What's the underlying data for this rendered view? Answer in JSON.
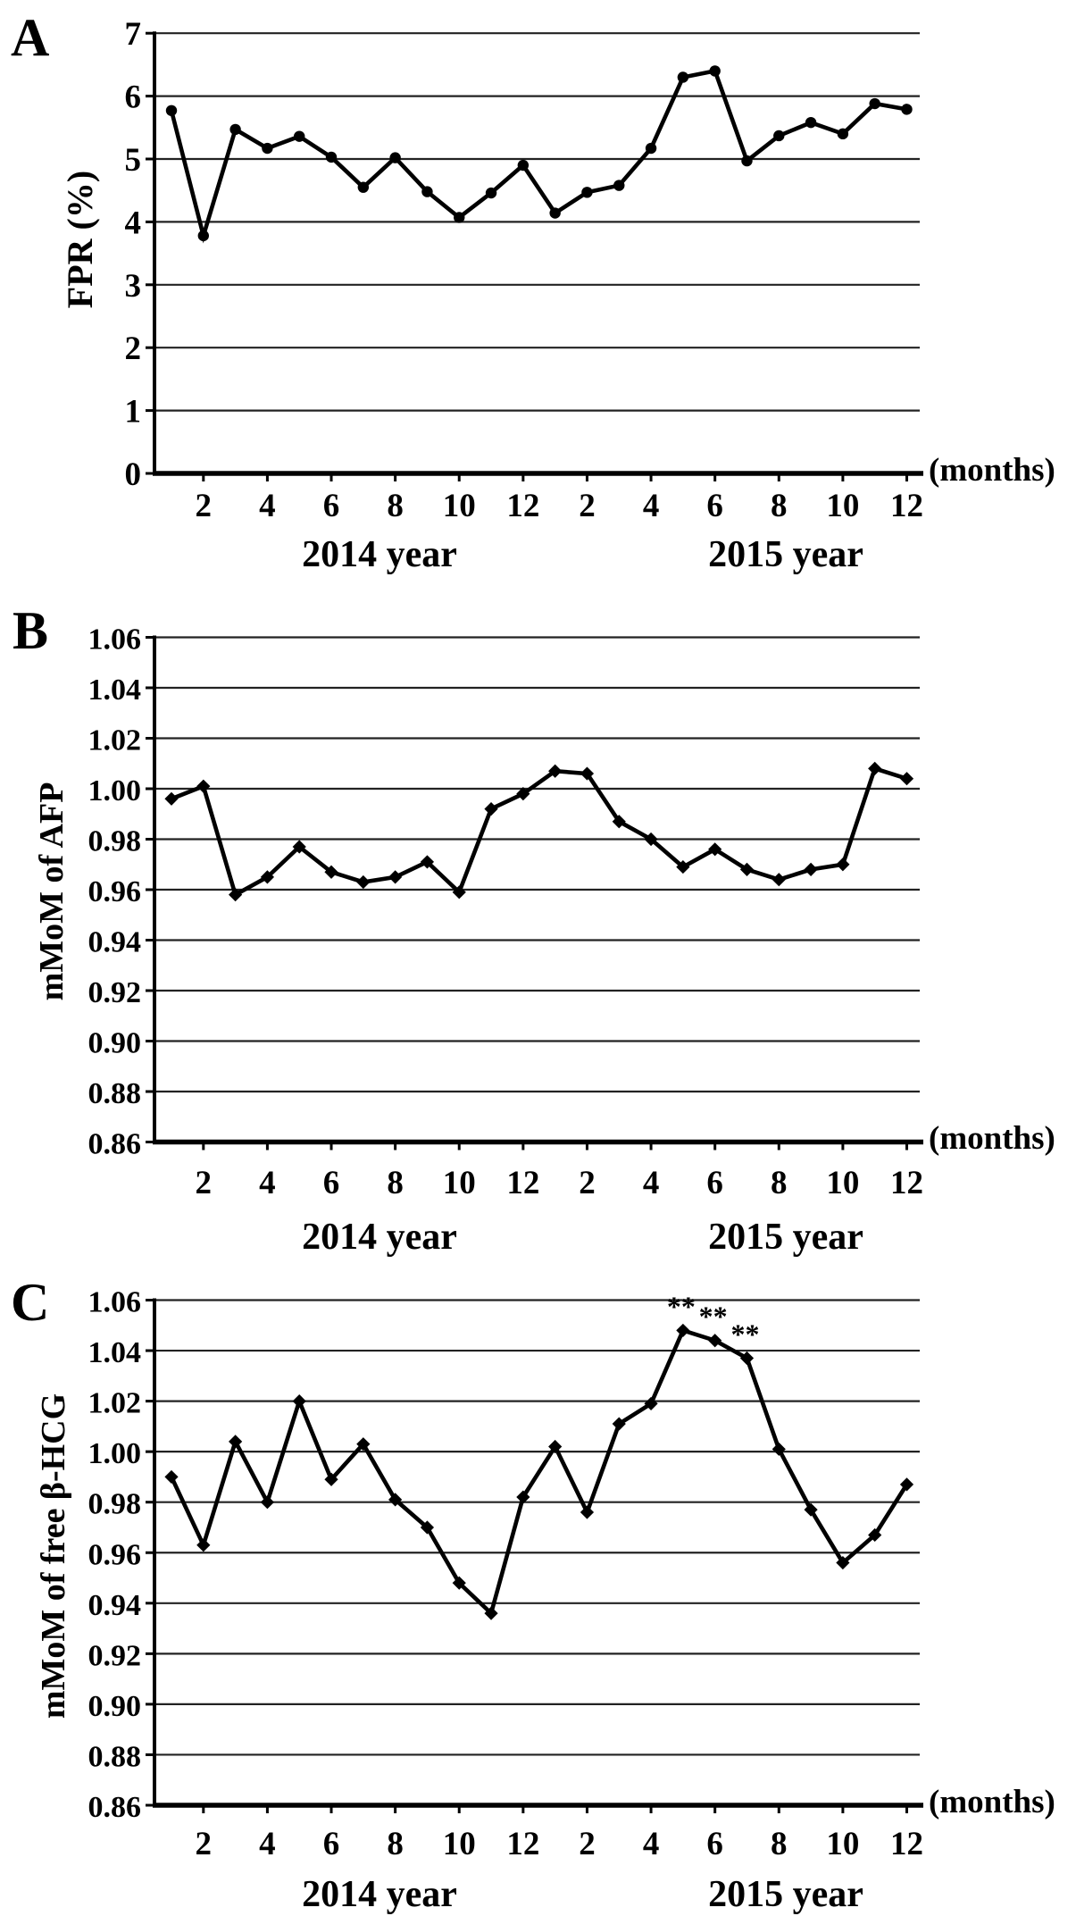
{
  "figure": {
    "background": "#ffffff",
    "ink_color": "#000000",
    "grid_color": "#222222",
    "x_unit_label": "(months)",
    "year_labels": [
      "2014 year",
      "2015 year"
    ],
    "x_tick_labels": [
      "2",
      "4",
      "6",
      "8",
      "10",
      "12",
      "2",
      "4",
      "6",
      "8",
      "10",
      "12"
    ]
  },
  "chart_data": [
    {
      "panel": "A",
      "type": "line",
      "marker": "circle",
      "title": "",
      "xlabel": "(months)",
      "ylabel": "FPR (%)",
      "ylim": [
        0,
        7
      ],
      "ytick_step": 1,
      "grid": true,
      "legend": "none",
      "x": [
        1,
        2,
        3,
        4,
        5,
        6,
        7,
        8,
        9,
        10,
        11,
        12,
        13,
        14,
        15,
        16,
        17,
        18,
        19,
        20,
        21,
        22,
        23,
        24
      ],
      "values": [
        5.77,
        3.78,
        5.47,
        5.17,
        5.36,
        5.03,
        4.55,
        5.02,
        4.48,
        4.07,
        4.46,
        4.9,
        4.14,
        4.47,
        4.58,
        5.17,
        6.3,
        6.4,
        4.97,
        5.37,
        5.58,
        5.4,
        5.88,
        5.79
      ],
      "annotations": []
    },
    {
      "panel": "B",
      "type": "line",
      "marker": "diamond",
      "title": "",
      "xlabel": "(months)",
      "ylabel": "mMoM of AFP",
      "ylim": [
        0.86,
        1.06
      ],
      "ytick_step": 0.02,
      "grid": true,
      "legend": "none",
      "x": [
        1,
        2,
        3,
        4,
        5,
        6,
        7,
        8,
        9,
        10,
        11,
        12,
        13,
        14,
        15,
        16,
        17,
        18,
        19,
        20,
        21,
        22,
        23,
        24
      ],
      "values": [
        0.996,
        1.001,
        0.958,
        0.965,
        0.977,
        0.967,
        0.963,
        0.965,
        0.971,
        0.959,
        0.992,
        0.998,
        1.007,
        1.006,
        0.987,
        0.98,
        0.969,
        0.976,
        0.968,
        0.964,
        0.968,
        0.97,
        1.008,
        1.004
      ],
      "annotations": []
    },
    {
      "panel": "C",
      "type": "line",
      "marker": "diamond",
      "title": "",
      "xlabel": "(months)",
      "ylabel": "mMoM of free β-HCG",
      "ylim": [
        0.86,
        1.06
      ],
      "ytick_step": 0.02,
      "grid": true,
      "legend": "none",
      "x": [
        1,
        2,
        3,
        4,
        5,
        6,
        7,
        8,
        9,
        10,
        11,
        12,
        13,
        14,
        15,
        16,
        17,
        18,
        19,
        20,
        21,
        22,
        23,
        24
      ],
      "values": [
        0.99,
        0.963,
        1.004,
        0.98,
        1.02,
        0.989,
        1.003,
        0.981,
        0.97,
        0.948,
        0.936,
        0.982,
        1.002,
        0.976,
        1.011,
        1.019,
        1.048,
        1.044,
        1.037,
        1.001,
        0.977,
        0.956,
        0.967,
        0.987
      ],
      "annotations": [
        {
          "month": 17,
          "text": "**"
        },
        {
          "month": 18,
          "text": "**"
        },
        {
          "month": 19,
          "text": "**"
        }
      ]
    }
  ]
}
